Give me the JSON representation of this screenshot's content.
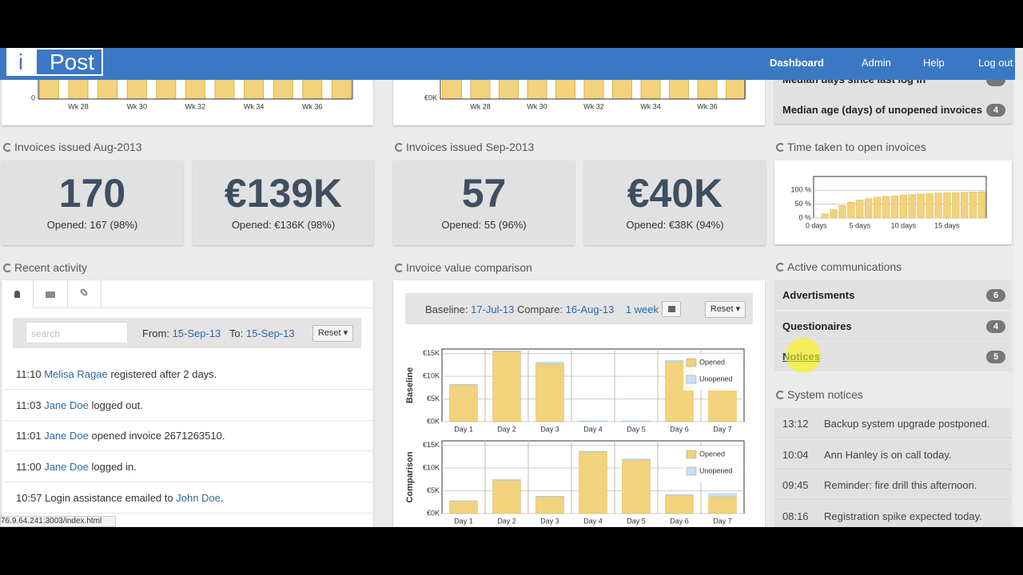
{
  "nav": {
    "brand_i": "i",
    "brand": "Post",
    "links": [
      "Dashboard",
      "Admin",
      "Help",
      "Log out"
    ]
  },
  "week_charts": [
    {
      "ytick": "0",
      "xticks": [
        "Wk 28",
        "Wk 30",
        "Wk 32",
        "Wk 34",
        "Wk 36"
      ]
    },
    {
      "ytick": "€0K",
      "xticks": [
        "Wk 28",
        "Wk 30",
        "Wk 32",
        "Wk 34",
        "Wk 36"
      ]
    }
  ],
  "stats": [
    {
      "title": "Invoices issued Aug-2013",
      "boxes": [
        {
          "big": "170",
          "sub": "Opened: 167 (98%)"
        },
        {
          "big": "€139K",
          "sub": "Opened: €136K (98%)"
        }
      ]
    },
    {
      "title": "Invoices issued Sep-2013",
      "boxes": [
        {
          "big": "57",
          "sub": "Opened: 55 (96%)"
        },
        {
          "big": "€40K",
          "sub": "Opened: €38K (94%)"
        }
      ]
    }
  ],
  "recent": {
    "title": "Recent activity",
    "search_placeholder": "search",
    "from_label": "From:",
    "from": "15-Sep-13",
    "to_label": "To:",
    "to": "15-Sep-13",
    "reset": "Reset",
    "items": [
      [
        {
          "text": "11:10"
        },
        {
          "link": "Melisa Ragae"
        },
        {
          "text": "registered after 2 days."
        }
      ],
      [
        {
          "text": "11:03"
        },
        {
          "link": "Jane Doe"
        },
        {
          "text": "logged out."
        }
      ],
      [
        {
          "text": "11:01"
        },
        {
          "link": "Jane Doe"
        },
        {
          "text": "opened invoice 2671263510."
        }
      ],
      [
        {
          "text": "11:00"
        },
        {
          "link": "Jane Doe"
        },
        {
          "text": "logged in."
        }
      ],
      [
        {
          "text": "10:57"
        },
        {
          "text": "Login assistance emailed to"
        },
        {
          "link": "John Doe"
        },
        {
          "text": "."
        }
      ]
    ]
  },
  "comparison": {
    "title": "Invoice value comparison",
    "baseline_label": "Baseline:",
    "baseline": "17-Jul-13",
    "compare_label": "Compare:",
    "compare": "16-Aug-13",
    "period": "1 week",
    "reset": "Reset",
    "charts": [
      {
        "type": "bar",
        "stacked": true,
        "y_label": "Baseline",
        "categories": [
          "Day 1",
          "Day 2",
          "Day 3",
          "Day 4",
          "Day 5",
          "Day 6",
          "Day 7"
        ],
        "series": [
          {
            "name": "Opened",
            "color": "#f2d27c",
            "values": [
              8100,
              15500,
              12800,
              0,
              0,
              13200,
              7200
            ]
          },
          {
            "name": "Unopened",
            "color": "#c6e0f5",
            "values": [
              100,
              100,
              300,
              200,
              200,
              300,
              100
            ]
          }
        ],
        "ylim": [
          0,
          16000
        ],
        "yticks": [
          {
            "value": 0,
            "label": "€0K"
          },
          {
            "value": 5000,
            "label": "€5K"
          },
          {
            "value": 10000,
            "label": "€10K"
          },
          {
            "value": 15000,
            "label": "€15K"
          }
        ],
        "grid": true,
        "legend": "upper right"
      },
      {
        "type": "bar",
        "stacked": true,
        "y_label": "Comparison",
        "categories": [
          "Day 1",
          "Day 2",
          "Day 3",
          "Day 4",
          "Day 5",
          "Day 6",
          "Day 7"
        ],
        "series": [
          {
            "name": "Opened",
            "color": "#f2d27c",
            "values": [
              2700,
              7300,
              3700,
              13600,
              11800,
              4000,
              3700
            ]
          },
          {
            "name": "Unopened",
            "color": "#c6e0f5",
            "values": [
              100,
              200,
              100,
              100,
              200,
              200,
              700
            ]
          }
        ],
        "ylim": [
          0,
          16000
        ],
        "yticks": [
          {
            "value": 0,
            "label": "€0K"
          },
          {
            "value": 5000,
            "label": "€5K"
          },
          {
            "value": 10000,
            "label": "€10K"
          },
          {
            "value": 15000,
            "label": "€15K"
          }
        ],
        "grid": true,
        "legend": "upper right"
      }
    ]
  },
  "metrics": [
    {
      "label": "Median days since last log in"
    },
    {
      "label": "Median age (days) of unopened invoices",
      "badge": 4
    }
  ],
  "time_chart": {
    "title": "Time taken to open invoices",
    "chart": {
      "type": "bar",
      "x": [
        1,
        2,
        3,
        4,
        5,
        6,
        7,
        8,
        9,
        10,
        11,
        12,
        13,
        14,
        15,
        16,
        17,
        18,
        19
      ],
      "values": [
        15,
        30,
        45,
        57,
        65,
        70,
        75,
        78,
        80,
        83,
        85,
        87,
        88,
        90,
        91,
        92,
        93,
        94,
        95
      ],
      "color": "#f2d27c",
      "xlim": [
        -0.3,
        19.5
      ],
      "xticks": [
        {
          "value": 0,
          "label": "0 days"
        },
        {
          "value": 5,
          "label": "5 days"
        },
        {
          "value": 10,
          "label": "10 days"
        },
        {
          "value": 15,
          "label": "15 days"
        }
      ],
      "ylim": [
        0,
        150
      ],
      "yticks": [
        {
          "value": 0,
          "label": "0 %"
        },
        {
          "value": 50,
          "label": "50 %"
        },
        {
          "value": 100,
          "label": "100 %"
        }
      ],
      "grid": true
    }
  },
  "communications": {
    "title": "Active communications",
    "items": [
      {
        "label": "Advertisments",
        "count": 6
      },
      {
        "label": "Questionaires",
        "count": 4
      },
      {
        "label": "Notices",
        "count": 5
      }
    ]
  },
  "notices": {
    "title": "System notices",
    "items": [
      {
        "time": "13:12",
        "text": "Backup system upgrade postponed."
      },
      {
        "time": "10:04",
        "text": "Ann Hanley is on call today."
      },
      {
        "time": "09:45",
        "text": "Reminder: fire drill this afternoon."
      },
      {
        "time": "08:16",
        "text": "Registration spike expected today."
      }
    ]
  },
  "status_url": "76.9.64.241:3003/index.html"
}
